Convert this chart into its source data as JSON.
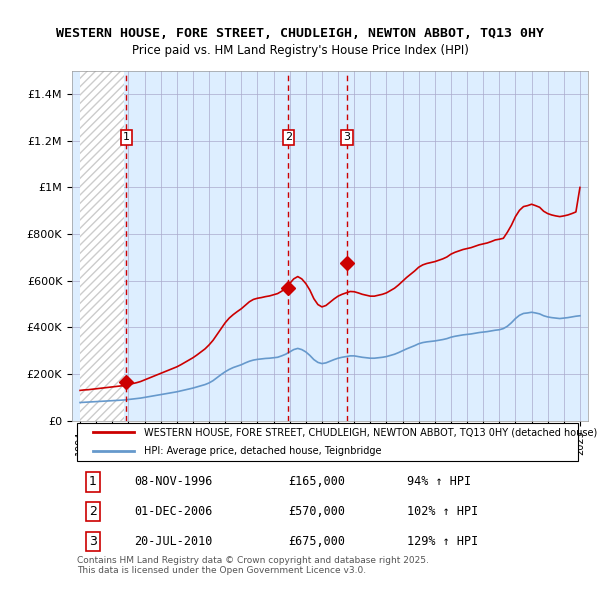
{
  "title1": "WESTERN HOUSE, FORE STREET, CHUDLEIGH, NEWTON ABBOT, TQ13 0HY",
  "title2": "Price paid vs. HM Land Registry's House Price Index (HPI)",
  "legend_line1": "WESTERN HOUSE, FORE STREET, CHUDLEIGH, NEWTON ABBOT, TQ13 0HY (detached house)",
  "legend_line2": "HPI: Average price, detached house, Teignbridge",
  "footer": "Contains HM Land Registry data © Crown copyright and database right 2025.\nThis data is licensed under the Open Government Licence v3.0.",
  "sale_events": [
    {
      "num": 1,
      "date": "08-NOV-1996",
      "price": 165000,
      "hpi_pct": "94% ↑ HPI"
    },
    {
      "num": 2,
      "date": "01-DEC-2006",
      "price": 570000,
      "hpi_pct": "102% ↑ HPI"
    },
    {
      "num": 3,
      "date": "20-JUL-2010",
      "price": 675000,
      "hpi_pct": "129% ↑ HPI"
    }
  ],
  "sale_years": [
    1996.87,
    2006.92,
    2010.55
  ],
  "sale_prices": [
    165000,
    570000,
    675000
  ],
  "ylim": [
    0,
    1500000
  ],
  "xlim": [
    1993.5,
    2025.5
  ],
  "red_color": "#cc0000",
  "blue_color": "#6699cc",
  "bg_color": "#ddeeff",
  "hatch_color": "#cccccc",
  "grid_color": "#aaaacc",
  "hpi_years": [
    1994.0,
    1994.25,
    1994.5,
    1994.75,
    1995.0,
    1995.25,
    1995.5,
    1995.75,
    1996.0,
    1996.25,
    1996.5,
    1996.75,
    1997.0,
    1997.25,
    1997.5,
    1997.75,
    1998.0,
    1998.25,
    1998.5,
    1998.75,
    1999.0,
    1999.25,
    1999.5,
    1999.75,
    2000.0,
    2000.25,
    2000.5,
    2000.75,
    2001.0,
    2001.25,
    2001.5,
    2001.75,
    2002.0,
    2002.25,
    2002.5,
    2002.75,
    2003.0,
    2003.25,
    2003.5,
    2003.75,
    2004.0,
    2004.25,
    2004.5,
    2004.75,
    2005.0,
    2005.25,
    2005.5,
    2005.75,
    2006.0,
    2006.25,
    2006.5,
    2006.75,
    2007.0,
    2007.25,
    2007.5,
    2007.75,
    2008.0,
    2008.25,
    2008.5,
    2008.75,
    2009.0,
    2009.25,
    2009.5,
    2009.75,
    2010.0,
    2010.25,
    2010.5,
    2010.75,
    2011.0,
    2011.25,
    2011.5,
    2011.75,
    2012.0,
    2012.25,
    2012.5,
    2012.75,
    2013.0,
    2013.25,
    2013.5,
    2013.75,
    2014.0,
    2014.25,
    2014.5,
    2014.75,
    2015.0,
    2015.25,
    2015.5,
    2015.75,
    2016.0,
    2016.25,
    2016.5,
    2016.75,
    2017.0,
    2017.25,
    2017.5,
    2017.75,
    2018.0,
    2018.25,
    2018.5,
    2018.75,
    2019.0,
    2019.25,
    2019.5,
    2019.75,
    2020.0,
    2020.25,
    2020.5,
    2020.75,
    2021.0,
    2021.25,
    2021.5,
    2021.75,
    2022.0,
    2022.25,
    2022.5,
    2022.75,
    2023.0,
    2023.25,
    2023.5,
    2023.75,
    2024.0,
    2024.25,
    2024.5,
    2024.75,
    2025.0
  ],
  "hpi_blue": [
    78000,
    79000,
    80000,
    81000,
    82000,
    83000,
    84000,
    85000,
    86000,
    87000,
    88000,
    89000,
    91000,
    93000,
    95000,
    97000,
    100000,
    103000,
    106000,
    109000,
    112000,
    115000,
    118000,
    121000,
    124000,
    128000,
    132000,
    136000,
    140000,
    145000,
    150000,
    155000,
    162000,
    172000,
    185000,
    198000,
    210000,
    220000,
    228000,
    234000,
    240000,
    248000,
    255000,
    260000,
    263000,
    265000,
    267000,
    268000,
    270000,
    272000,
    278000,
    285000,
    295000,
    305000,
    310000,
    305000,
    295000,
    280000,
    262000,
    250000,
    245000,
    248000,
    255000,
    262000,
    268000,
    272000,
    275000,
    278000,
    278000,
    275000,
    272000,
    270000,
    268000,
    268000,
    270000,
    272000,
    275000,
    280000,
    285000,
    292000,
    300000,
    308000,
    315000,
    322000,
    330000,
    335000,
    338000,
    340000,
    342000,
    345000,
    348000,
    352000,
    358000,
    362000,
    365000,
    368000,
    370000,
    372000,
    375000,
    378000,
    380000,
    382000,
    385000,
    388000,
    390000,
    395000,
    405000,
    420000,
    438000,
    452000,
    460000,
    462000,
    465000,
    462000,
    458000,
    450000,
    445000,
    442000,
    440000,
    438000,
    440000,
    442000,
    445000,
    448000,
    450000
  ],
  "hpi_red": [
    130000,
    132000,
    133000,
    135000,
    137000,
    139000,
    141000,
    143000,
    145000,
    147000,
    149000,
    151000,
    155000,
    159000,
    163000,
    168000,
    175000,
    182000,
    189000,
    196000,
    203000,
    210000,
    217000,
    224000,
    231000,
    240000,
    250000,
    260000,
    270000,
    282000,
    295000,
    308000,
    325000,
    345000,
    370000,
    395000,
    420000,
    440000,
    455000,
    468000,
    480000,
    495000,
    510000,
    520000,
    525000,
    528000,
    532000,
    535000,
    540000,
    545000,
    555000,
    568000,
    588000,
    608000,
    618000,
    608000,
    588000,
    560000,
    523000,
    498000,
    488000,
    494000,
    508000,
    522000,
    534000,
    542000,
    548000,
    554000,
    553000,
    548000,
    542000,
    538000,
    534000,
    534000,
    538000,
    542000,
    548000,
    558000,
    568000,
    582000,
    598000,
    614000,
    628000,
    642000,
    658000,
    668000,
    674000,
    678000,
    682000,
    688000,
    694000,
    702000,
    714000,
    722000,
    728000,
    734000,
    738000,
    742000,
    748000,
    754000,
    758000,
    762000,
    768000,
    775000,
    778000,
    782000,
    808000,
    838000,
    875000,
    902000,
    918000,
    922000,
    928000,
    922000,
    915000,
    898000,
    888000,
    882000,
    878000,
    875000,
    878000,
    882000,
    888000,
    895000,
    1000000
  ]
}
